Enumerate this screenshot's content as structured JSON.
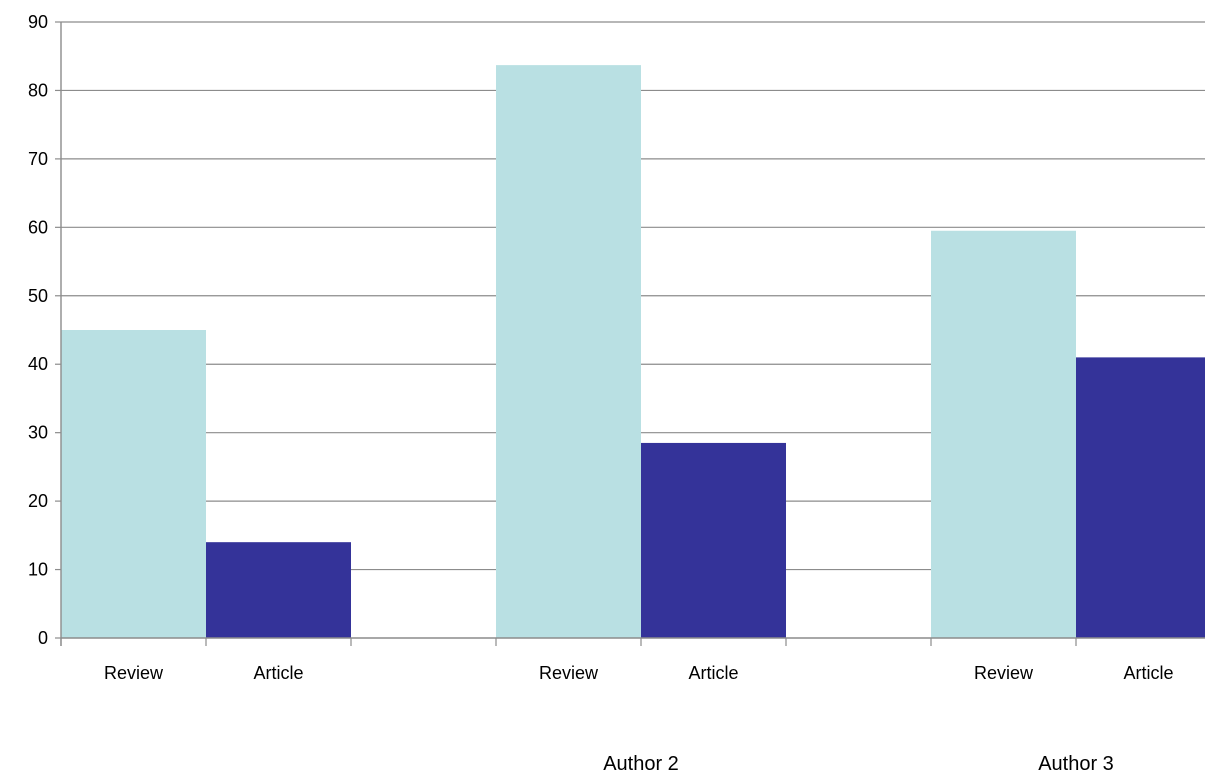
{
  "chart_data": {
    "type": "bar",
    "groups": [
      {
        "label": "",
        "items": [
          {
            "label": "Review",
            "value": 45
          },
          {
            "label": "Article",
            "value": 14
          }
        ]
      },
      {
        "label": "Author 2",
        "items": [
          {
            "label": "Review",
            "value": 83.7
          },
          {
            "label": "Article",
            "value": 28.5
          }
        ]
      },
      {
        "label": "Author 3",
        "items": [
          {
            "label": "Review",
            "value": 59.5
          },
          {
            "label": "Article",
            "value": 41
          }
        ]
      }
    ],
    "series_colors": {
      "Review": "#b9e0e3",
      "Article": "#343399"
    },
    "ylim": [
      0,
      90
    ],
    "yticks": [
      0,
      10,
      20,
      30,
      40,
      50,
      60,
      70,
      80,
      90
    ],
    "grid": true,
    "legend": "none",
    "title": "",
    "xlabel": "",
    "ylabel": ""
  }
}
